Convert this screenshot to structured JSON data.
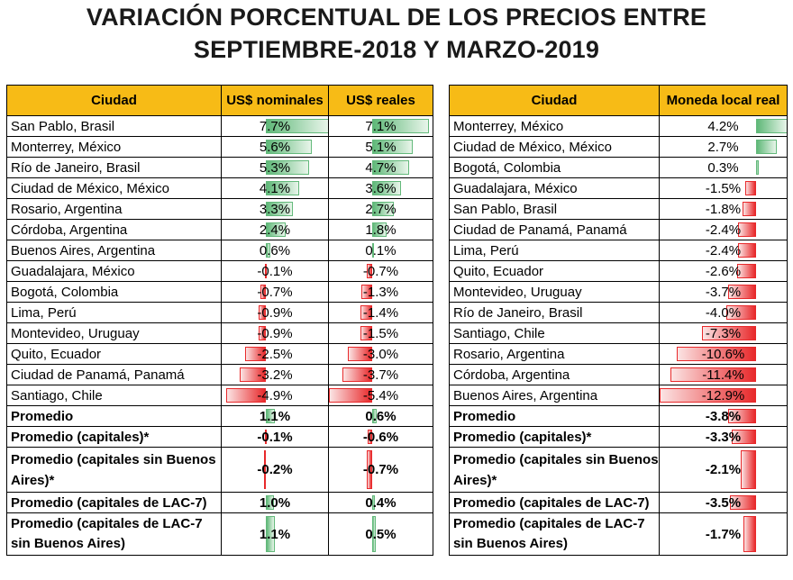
{
  "title_line1": "VARIACIÓN PORCENTUAL DE LOS PRECIOS ENTRE",
  "title_line2": "SEPTIEMBRE-2018 Y MARZO-2019",
  "colors": {
    "header": "#f7bb16",
    "positive": "#63b97b",
    "negative": "#e8292b"
  },
  "chart_data": [
    {
      "type": "table",
      "columns": [
        "Ciudad",
        "US$ nominales",
        "US$ reales"
      ],
      "rows": [
        {
          "city": "San Pablo, Brasil",
          "nominal": "7.7%",
          "nominal_value": 7.7,
          "real": "7.1%",
          "real_value": 7.1
        },
        {
          "city": "Monterrey, México",
          "nominal": "5.6%",
          "nominal_value": 5.6,
          "real": "5.1%",
          "real_value": 5.1
        },
        {
          "city": "Río de Janeiro, Brasil",
          "nominal": "5.3%",
          "nominal_value": 5.3,
          "real": "4.7%",
          "real_value": 4.7
        },
        {
          "city": "Ciudad de México, México",
          "nominal": "4.1%",
          "nominal_value": 4.1,
          "real": "3.6%",
          "real_value": 3.6
        },
        {
          "city": "Rosario, Argentina",
          "nominal": "3.3%",
          "nominal_value": 3.3,
          "real": "2.7%",
          "real_value": 2.7
        },
        {
          "city": "Córdoba, Argentina",
          "nominal": "2.4%",
          "nominal_value": 2.4,
          "real": "1.8%",
          "real_value": 1.8
        },
        {
          "city": "Buenos Aires, Argentina",
          "nominal": "0.6%",
          "nominal_value": 0.6,
          "real": "0.1%",
          "real_value": 0.1
        },
        {
          "city": "Guadalajara, México",
          "nominal": "-0.1%",
          "nominal_value": -0.1,
          "real": "-0.7%",
          "real_value": -0.7
        },
        {
          "city": "Bogotá, Colombia",
          "nominal": "-0.7%",
          "nominal_value": -0.7,
          "real": "-1.3%",
          "real_value": -1.3
        },
        {
          "city": "Lima, Perú",
          "nominal": "-0.9%",
          "nominal_value": -0.9,
          "real": "-1.4%",
          "real_value": -1.4
        },
        {
          "city": "Montevideo, Uruguay",
          "nominal": "-0.9%",
          "nominal_value": -0.9,
          "real": "-1.5%",
          "real_value": -1.5
        },
        {
          "city": "Quito, Ecuador",
          "nominal": "-2.5%",
          "nominal_value": -2.5,
          "real": "-3.0%",
          "real_value": -3.0
        },
        {
          "city": "Ciudad de Panamá, Panamá",
          "nominal": "-3.2%",
          "nominal_value": -3.2,
          "real": "-3.7%",
          "real_value": -3.7
        },
        {
          "city": "Santiago, Chile",
          "nominal": "-4.9%",
          "nominal_value": -4.9,
          "real": "-5.4%",
          "real_value": -5.4
        }
      ],
      "summary": [
        {
          "city": "Promedio",
          "nominal": "1.1%",
          "nominal_value": 1.1,
          "real": "0.6%",
          "real_value": 0.6
        },
        {
          "city": "Promedio (capitales)*",
          "nominal": "-0.1%",
          "nominal_value": -0.1,
          "real": "-0.6%",
          "real_value": -0.6
        },
        {
          "city": "Promedio (capitales sin Buenos Aires)*",
          "nominal": "-0.2%",
          "nominal_value": -0.2,
          "real": "-0.7%",
          "real_value": -0.7
        },
        {
          "city": "Promedio (capitales de LAC-7)",
          "nominal": "1.0%",
          "nominal_value": 1.0,
          "real": "0.4%",
          "real_value": 0.4
        },
        {
          "city": "Promedio (capitales de LAC-7 sin Buenos Aires)",
          "nominal": "1.1%",
          "nominal_value": 1.1,
          "real": "0.5%",
          "real_value": 0.5
        }
      ]
    },
    {
      "type": "table",
      "columns": [
        "Ciudad",
        "Moneda local real"
      ],
      "rows": [
        {
          "city": "Monterrey, México",
          "local": "4.2%",
          "local_value": 4.2
        },
        {
          "city": "Ciudad de México, México",
          "local": "2.7%",
          "local_value": 2.7
        },
        {
          "city": "Bogotá, Colombia",
          "local": "0.3%",
          "local_value": 0.3
        },
        {
          "city": "Guadalajara, México",
          "local": "-1.5%",
          "local_value": -1.5
        },
        {
          "city": "San Pablo, Brasil",
          "local": "-1.8%",
          "local_value": -1.8
        },
        {
          "city": "Ciudad de Panamá, Panamá",
          "local": "-2.4%",
          "local_value": -2.4
        },
        {
          "city": "Lima, Perú",
          "local": "-2.4%",
          "local_value": -2.4
        },
        {
          "city": "Quito, Ecuador",
          "local": "-2.6%",
          "local_value": -2.6
        },
        {
          "city": "Montevideo, Uruguay",
          "local": "-3.7%",
          "local_value": -3.7
        },
        {
          "city": "Río de Janeiro, Brasil",
          "local": "-4.0%",
          "local_value": -4.0
        },
        {
          "city": "Santiago, Chile",
          "local": "-7.3%",
          "local_value": -7.3
        },
        {
          "city": "Rosario, Argentina",
          "local": "-10.6%",
          "local_value": -10.6
        },
        {
          "city": "Córdoba, Argentina",
          "local": "-11.4%",
          "local_value": -11.4
        },
        {
          "city": "Buenos Aires, Argentina",
          "local": "-12.9%",
          "local_value": -12.9
        }
      ],
      "summary": [
        {
          "city": "Promedio",
          "local": "-3.8%",
          "local_value": -3.8
        },
        {
          "city": "Promedio (capitales)*",
          "local": "-3.3%",
          "local_value": -3.3
        },
        {
          "city": "Promedio (capitales sin Buenos Aires)*",
          "local": "-2.1%",
          "local_value": -2.1
        },
        {
          "city": "Promedio (capitales de LAC-7)",
          "local": "-3.5%",
          "local_value": -3.5
        },
        {
          "city": "Promedio (capitales de LAC-7 sin Buenos Aires)",
          "local": "-1.7%",
          "local_value": -1.7
        }
      ]
    }
  ]
}
